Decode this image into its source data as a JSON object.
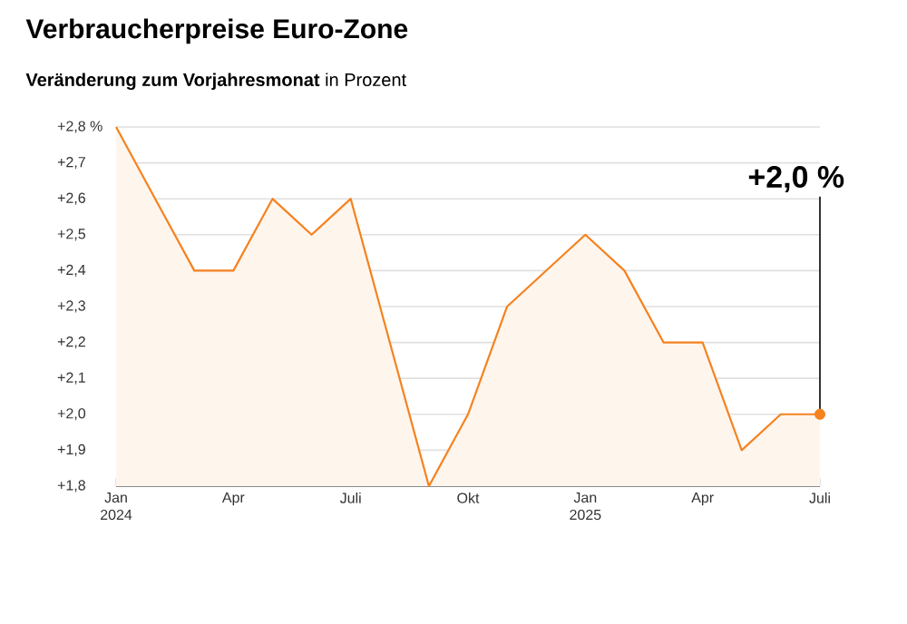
{
  "chart_data": {
    "type": "area",
    "title": "Verbraucherpreise Euro-Zone",
    "subtitle": "**Veränderung zum Vorjahresmonat** in Prozent",
    "x": [
      "2024-01",
      "2024-02",
      "2024-03",
      "2024-04",
      "2024-05",
      "2024-06",
      "2024-07",
      "2024-08",
      "2024-09",
      "2024-10",
      "2024-11",
      "2024-12",
      "2025-01",
      "2025-02",
      "2025-03",
      "2025-04",
      "2025-05",
      "2025-06",
      "2025-07"
    ],
    "series": [
      {
        "color": "#f5821f",
        "values": [
          2.8,
          2.6,
          2.4,
          2.4,
          2.6,
          2.5,
          2.6,
          2.2,
          1.8,
          2.0,
          2.3,
          2.4,
          2.5,
          2.4,
          2.2,
          2.2,
          1.9,
          2.0,
          2.0
        ]
      }
    ],
    "xlim": [
      "2024-01",
      "2025-07"
    ],
    "xticks": [
      {
        "value": "2024-01",
        "label": "Jan 2024"
      },
      {
        "value": "2024-04",
        "label": "Apr"
      },
      {
        "value": "2024-07",
        "label": "Juli"
      },
      {
        "value": "2024-10",
        "label": "Okt"
      },
      {
        "value": "2025-01",
        "label": "Jan 2025"
      },
      {
        "value": "2025-04",
        "label": "Apr"
      },
      {
        "value": "2025-07",
        "label": "Juli"
      }
    ],
    "ylim": [
      1.8,
      2.8
    ],
    "yticks": [
      {
        "value": 1.8,
        "label": "+1,8"
      },
      {
        "value": 1.9,
        "label": "+1,9"
      },
      {
        "value": 2.0,
        "label": "+2,0"
      },
      {
        "value": 2.1,
        "label": "+2,1"
      },
      {
        "value": 2.2,
        "label": "+2,2"
      },
      {
        "value": 2.3,
        "label": "+2,3"
      },
      {
        "value": 2.4,
        "label": "+2,4"
      },
      {
        "value": 2.5,
        "label": "+2,5"
      },
      {
        "value": 2.6,
        "label": "+2,6"
      },
      {
        "value": 2.7,
        "label": "+2,7"
      },
      {
        "value": 2.8,
        "label": "+2,8 %"
      }
    ],
    "grid": "y",
    "annotations": [
      "+2,0 %"
    ]
  }
}
